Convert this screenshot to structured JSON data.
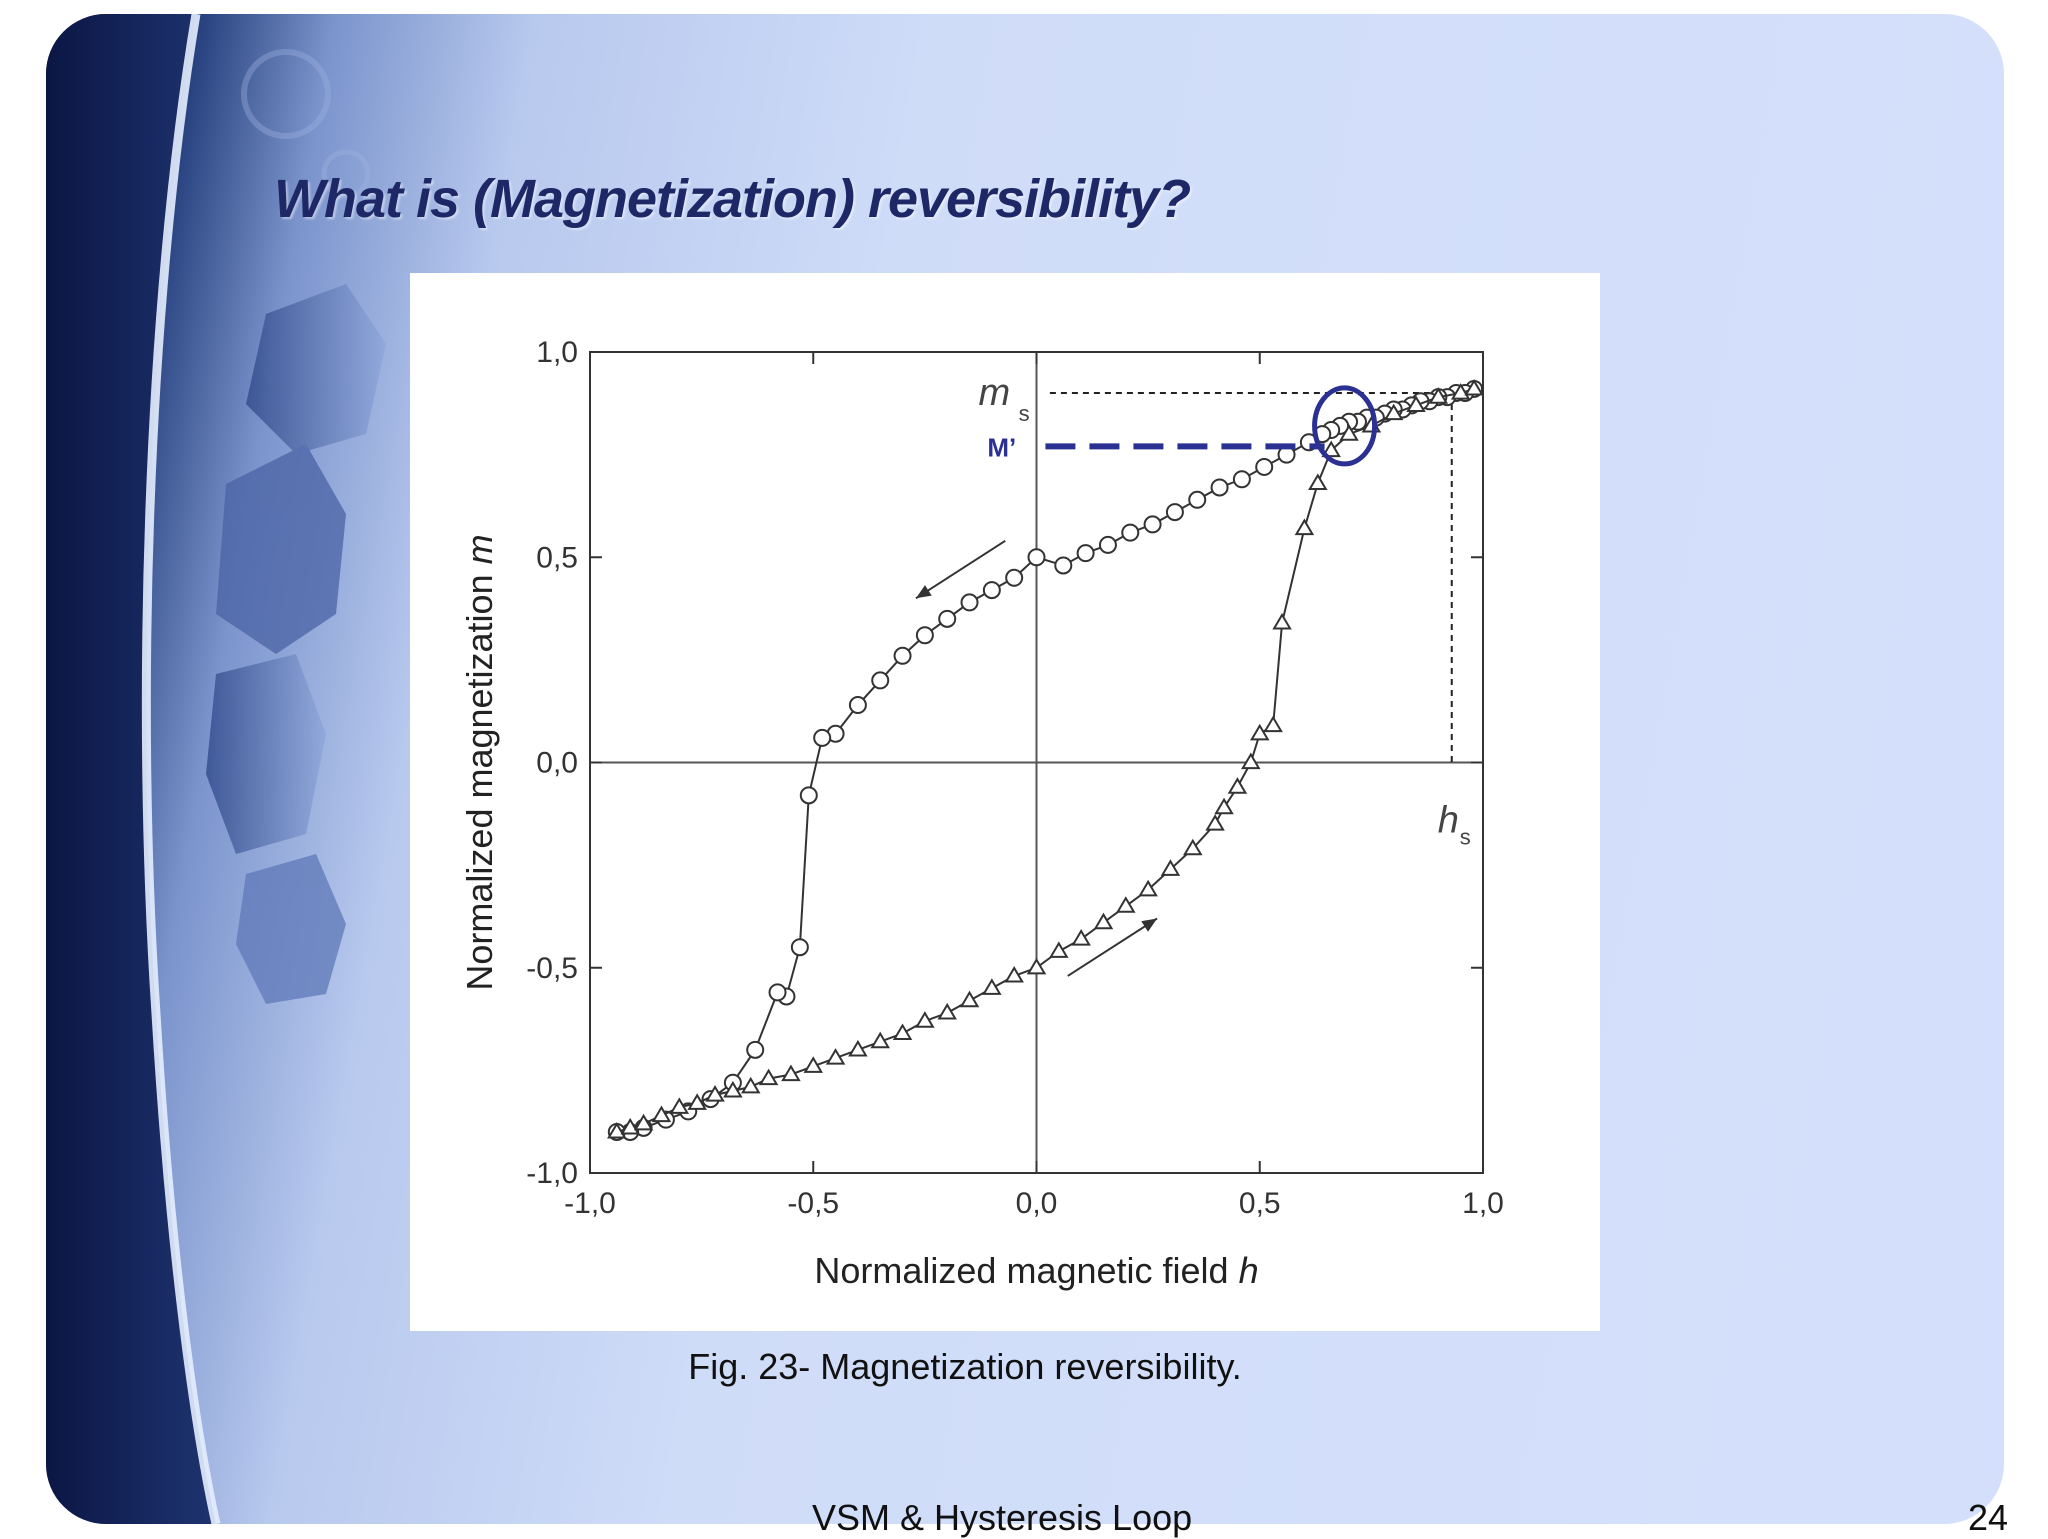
{
  "slide": {
    "title": "What is (Magnetization) reversibility?",
    "caption": "Fig. 23- Magnetization reversibility.",
    "footer": "VSM & Hysteresis Loop",
    "page_number": "24"
  },
  "colors": {
    "title": "#1f2866",
    "annotation": "#2b3192",
    "background_dark": "#0d1c4c",
    "background_light": "#d4e0fb"
  },
  "chart_data": {
    "type": "line",
    "xlabel": "Normalized magnetic field",
    "xlabel_symbol": "h",
    "ylabel": "Normalized magnetization",
    "ylabel_symbol": "m",
    "xlim": [
      -1.0,
      1.0
    ],
    "ylim": [
      -1.0,
      1.0
    ],
    "x_ticks": [
      -1.0,
      -0.5,
      0.0,
      0.5,
      1.0
    ],
    "y_ticks": [
      -1.0,
      -0.5,
      0.0,
      0.5,
      1.0
    ],
    "x_tick_labels": [
      "-1,0",
      "-0,5",
      "0,0",
      "0,5",
      "1,0"
    ],
    "y_tick_labels": [
      "-1,0",
      "-0,5",
      "0,0",
      "0,5",
      "1,0"
    ],
    "grid": false,
    "series": [
      {
        "marker": "circle",
        "x": [
          0.98,
          0.96,
          0.94,
          0.92,
          0.9,
          0.88,
          0.86,
          0.84,
          0.82,
          0.8,
          0.78,
          0.76,
          0.74,
          0.72,
          0.7,
          0.68,
          0.66,
          0.64,
          0.61,
          0.56,
          0.51,
          0.46,
          0.41,
          0.36,
          0.31,
          0.26,
          0.21,
          0.16,
          0.11,
          0.06,
          0.0,
          -0.05,
          -0.1,
          -0.15,
          -0.2,
          -0.25,
          -0.3,
          -0.35,
          -0.4,
          -0.45,
          -0.48,
          -0.51,
          -0.53,
          -0.56,
          -0.58,
          -0.63,
          -0.68,
          -0.73,
          -0.78,
          -0.83,
          -0.88,
          -0.91,
          -0.94
        ],
        "y": [
          0.91,
          0.9,
          0.9,
          0.89,
          0.89,
          0.88,
          0.88,
          0.87,
          0.86,
          0.86,
          0.85,
          0.84,
          0.84,
          0.83,
          0.83,
          0.82,
          0.81,
          0.8,
          0.78,
          0.75,
          0.72,
          0.69,
          0.67,
          0.64,
          0.61,
          0.58,
          0.56,
          0.53,
          0.51,
          0.48,
          0.5,
          0.45,
          0.42,
          0.39,
          0.35,
          0.31,
          0.26,
          0.2,
          0.14,
          0.07,
          0.06,
          -0.08,
          -0.45,
          -0.57,
          -0.56,
          -0.7,
          -0.78,
          -0.82,
          -0.85,
          -0.87,
          -0.89,
          -0.9,
          -0.9
        ]
      },
      {
        "marker": "triangle",
        "x": [
          -0.94,
          -0.91,
          -0.88,
          -0.84,
          -0.8,
          -0.76,
          -0.72,
          -0.68,
          -0.64,
          -0.6,
          -0.55,
          -0.5,
          -0.45,
          -0.4,
          -0.35,
          -0.3,
          -0.25,
          -0.2,
          -0.15,
          -0.1,
          -0.05,
          0.0,
          0.05,
          0.1,
          0.15,
          0.2,
          0.25,
          0.3,
          0.35,
          0.4,
          0.42,
          0.45,
          0.48,
          0.5,
          0.53,
          0.55,
          0.6,
          0.63,
          0.66,
          0.7,
          0.75,
          0.8,
          0.85,
          0.9,
          0.95,
          0.98
        ],
        "y": [
          -0.9,
          -0.89,
          -0.88,
          -0.86,
          -0.84,
          -0.83,
          -0.81,
          -0.8,
          -0.79,
          -0.77,
          -0.76,
          -0.74,
          -0.72,
          -0.7,
          -0.68,
          -0.66,
          -0.63,
          -0.61,
          -0.58,
          -0.55,
          -0.52,
          -0.5,
          -0.46,
          -0.43,
          -0.39,
          -0.35,
          -0.31,
          -0.26,
          -0.21,
          -0.15,
          -0.11,
          -0.06,
          0.0,
          0.07,
          0.09,
          0.34,
          0.57,
          0.68,
          0.76,
          0.8,
          0.82,
          0.85,
          0.87,
          0.89,
          0.9,
          0.91
        ]
      }
    ],
    "annotations": {
      "ms_label": "m",
      "ms_subscript": "s",
      "ms_value": 0.9,
      "hs_label": "h",
      "hs_subscript": "s",
      "hs_value": 0.93,
      "m_prime_label": "M’",
      "m_prime_value": 0.77,
      "circled_point": [
        0.69,
        0.82
      ],
      "arrows": [
        {
          "from": [
            -0.07,
            0.54
          ],
          "to": [
            -0.27,
            0.4
          ]
        },
        {
          "from": [
            0.07,
            -0.52
          ],
          "to": [
            0.27,
            -0.38
          ]
        }
      ]
    }
  }
}
